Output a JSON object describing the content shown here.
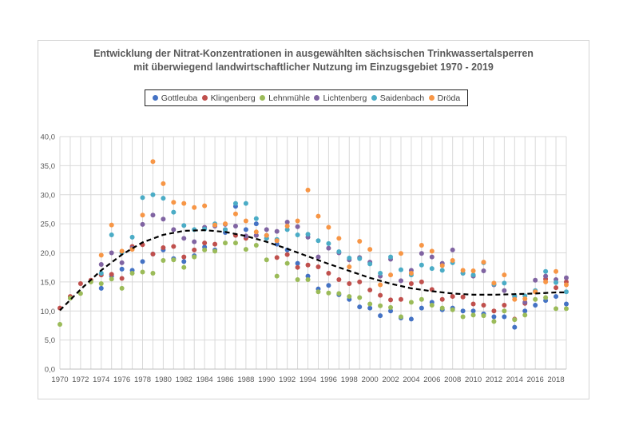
{
  "chart_data": {
    "type": "scatter",
    "title": "Entwicklung der Nitrat-Konzentrationen in ausgewählten sächsischen Trinkwassertalsperren",
    "subtitle": "mit überwiegend landwirtschaftlicher Nutzung im Einzugsgebiet 1970 - 2019",
    "xlabel": "",
    "ylabel": "",
    "xlim": [
      1970,
      2019
    ],
    "ylim": [
      0,
      40
    ],
    "x_ticks": [
      "1970",
      "1972",
      "1974",
      "1976",
      "1978",
      "1980",
      "1982",
      "1984",
      "1986",
      "1988",
      "1990",
      "1992",
      "1994",
      "1996",
      "1998",
      "2000",
      "2002",
      "2004",
      "2006",
      "2008",
      "2010",
      "2012",
      "2014",
      "2016",
      "2018"
    ],
    "y_ticks": [
      "0,0",
      "5,0",
      "10,0",
      "15,0",
      "20,0",
      "25,0",
      "30,0",
      "35,0",
      "40,0"
    ],
    "grid": "vertical and horizontal",
    "legend_position": "top",
    "series": [
      {
        "name": "Gottleuba",
        "color": "#4472c4",
        "points": [
          [
            1974,
            13.9
          ],
          [
            1975,
            16
          ],
          [
            1976,
            17.2
          ],
          [
            1977,
            17
          ],
          [
            1978,
            18.5
          ],
          [
            1979,
            19.8
          ],
          [
            1980,
            20.5
          ],
          [
            1981,
            19
          ],
          [
            1982,
            18.5
          ],
          [
            1983,
            19.5
          ],
          [
            1984,
            21
          ],
          [
            1985,
            20.5
          ],
          [
            1986,
            23.5
          ],
          [
            1987,
            28
          ],
          [
            1988,
            24
          ],
          [
            1989,
            25
          ],
          [
            1990,
            23
          ],
          [
            1991,
            21.5
          ],
          [
            1992,
            20.5
          ],
          [
            1993,
            18.2
          ],
          [
            1994,
            16
          ],
          [
            1995,
            13.8
          ],
          [
            1996,
            14.4
          ],
          [
            1997,
            12.8
          ],
          [
            1998,
            12
          ],
          [
            1999,
            10.7
          ],
          [
            2000,
            10.5
          ],
          [
            2001,
            9.2
          ],
          [
            2002,
            10
          ],
          [
            2003,
            8.8
          ],
          [
            2004,
            8.6
          ],
          [
            2005,
            10.5
          ],
          [
            2006,
            11.5
          ],
          [
            2007,
            10.2
          ],
          [
            2008,
            10.5
          ],
          [
            2009,
            10
          ],
          [
            2010,
            10
          ],
          [
            2011,
            9.5
          ],
          [
            2012,
            9
          ],
          [
            2013,
            9
          ],
          [
            2014,
            7.2
          ],
          [
            2015,
            10
          ],
          [
            2016,
            11
          ],
          [
            2017,
            11.8
          ],
          [
            2018,
            12.5
          ],
          [
            2019,
            11.2
          ]
        ]
      },
      {
        "name": "Klingenberg",
        "color": "#c0504d",
        "points": [
          [
            1970,
            10.5
          ],
          [
            1971,
            12.5
          ],
          [
            1972,
            14.7
          ],
          [
            1973,
            15.3
          ],
          [
            1974,
            16.2
          ],
          [
            1975,
            16.3
          ],
          [
            1976,
            15.6
          ],
          [
            1977,
            21.1
          ],
          [
            1978,
            21.4
          ],
          [
            1979,
            19.8
          ],
          [
            1980,
            20.9
          ],
          [
            1981,
            21.1
          ],
          [
            1982,
            19.3
          ],
          [
            1983,
            20.5
          ],
          [
            1984,
            21.7
          ],
          [
            1985,
            21.5
          ],
          [
            1986,
            24
          ],
          [
            1987,
            23
          ],
          [
            1988,
            22.5
          ],
          [
            1989,
            23
          ],
          [
            1990,
            22.5
          ],
          [
            1991,
            19.2
          ],
          [
            1992,
            19.7
          ],
          [
            1993,
            17.5
          ],
          [
            1994,
            17.9
          ],
          [
            1995,
            17.6
          ],
          [
            1996,
            16.5
          ],
          [
            1997,
            15.4
          ],
          [
            1998,
            14.7
          ],
          [
            1999,
            15
          ],
          [
            2000,
            13.6
          ],
          [
            2001,
            12.7
          ],
          [
            2002,
            11.9
          ],
          [
            2003,
            12
          ],
          [
            2004,
            14.7
          ],
          [
            2005,
            15
          ],
          [
            2006,
            13.7
          ],
          [
            2007,
            12
          ],
          [
            2008,
            12.5
          ],
          [
            2009,
            12.4
          ],
          [
            2010,
            11.2
          ],
          [
            2011,
            11
          ],
          [
            2012,
            10
          ],
          [
            2013,
            11
          ],
          [
            2014,
            8.6
          ],
          [
            2015,
            11.3
          ],
          [
            2016,
            13.4
          ],
          [
            2017,
            15.5
          ],
          [
            2018,
            14
          ],
          [
            2019,
            15
          ]
        ]
      },
      {
        "name": "Lehnmühle",
        "color": "#9bbb59",
        "points": [
          [
            1970,
            7.7
          ],
          [
            1971,
            12.2
          ],
          [
            1972,
            13
          ],
          [
            1973,
            15
          ],
          [
            1974,
            14.7
          ],
          [
            1975,
            15.5
          ],
          [
            1976,
            13.9
          ],
          [
            1977,
            16.5
          ],
          [
            1978,
            16.7
          ],
          [
            1979,
            16.5
          ],
          [
            1980,
            18.7
          ],
          [
            1981,
            18.8
          ],
          [
            1982,
            17.5
          ],
          [
            1983,
            19.3
          ],
          [
            1984,
            20.5
          ],
          [
            1985,
            20.3
          ],
          [
            1986,
            21.7
          ],
          [
            1987,
            21.7
          ],
          [
            1988,
            20.6
          ],
          [
            1989,
            21.3
          ],
          [
            1990,
            18.8
          ],
          [
            1991,
            16
          ],
          [
            1992,
            18.2
          ],
          [
            1993,
            15.4
          ],
          [
            1994,
            15.4
          ],
          [
            1995,
            13.3
          ],
          [
            1996,
            13.1
          ],
          [
            1997,
            13
          ],
          [
            1998,
            12.5
          ],
          [
            1999,
            12.3
          ],
          [
            2000,
            11.2
          ],
          [
            2001,
            10.9
          ],
          [
            2002,
            10.6
          ],
          [
            2003,
            9
          ],
          [
            2004,
            11.5
          ],
          [
            2005,
            12
          ],
          [
            2006,
            11
          ],
          [
            2007,
            10.5
          ],
          [
            2008,
            10.2
          ],
          [
            2009,
            9
          ],
          [
            2010,
            9.3
          ],
          [
            2011,
            9.2
          ],
          [
            2012,
            8.2
          ],
          [
            2013,
            10
          ],
          [
            2014,
            8.5
          ],
          [
            2015,
            9.3
          ],
          [
            2016,
            12
          ],
          [
            2017,
            12.3
          ],
          [
            2018,
            10.4
          ],
          [
            2019,
            10.4
          ]
        ]
      },
      {
        "name": "Lichtenberg",
        "color": "#8064a2",
        "points": [
          [
            1974,
            18
          ],
          [
            1975,
            20
          ],
          [
            1976,
            18.3
          ],
          [
            1977,
            20.8
          ],
          [
            1978,
            24.9
          ],
          [
            1979,
            26.5
          ],
          [
            1980,
            25.8
          ],
          [
            1981,
            24
          ],
          [
            1982,
            22.5
          ],
          [
            1983,
            21.9
          ],
          [
            1984,
            24.4
          ],
          [
            1985,
            24.6
          ],
          [
            1986,
            24.9
          ],
          [
            1987,
            24.6
          ],
          [
            1988,
            22.9
          ],
          [
            1989,
            23
          ],
          [
            1990,
            24
          ],
          [
            1991,
            23.7
          ],
          [
            1992,
            25.3
          ],
          [
            1993,
            24.5
          ],
          [
            1994,
            22.7
          ],
          [
            1995,
            19.3
          ],
          [
            1996,
            20.8
          ],
          [
            1997,
            20
          ],
          [
            1998,
            18.8
          ],
          [
            1999,
            19.2
          ],
          [
            2000,
            18.4
          ],
          [
            2001,
            16
          ],
          [
            2002,
            18.9
          ],
          [
            2003,
            15.2
          ],
          [
            2004,
            17
          ],
          [
            2005,
            19.9
          ],
          [
            2006,
            19.3
          ],
          [
            2007,
            18.2
          ],
          [
            2008,
            20.5
          ],
          [
            2009,
            16.5
          ],
          [
            2010,
            16
          ],
          [
            2011,
            16.9
          ],
          [
            2012,
            14.5
          ],
          [
            2013,
            13.5
          ],
          [
            2014,
            12.5
          ],
          [
            2015,
            11.5
          ],
          [
            2016,
            15.3
          ],
          [
            2017,
            16
          ],
          [
            2018,
            15.4
          ],
          [
            2019,
            15.7
          ]
        ]
      },
      {
        "name": "Saidenbach",
        "color": "#4bacc6",
        "points": [
          [
            1974,
            16.5
          ],
          [
            1975,
            23.1
          ],
          [
            1976,
            20
          ],
          [
            1977,
            22.7
          ],
          [
            1978,
            29.5
          ],
          [
            1979,
            30
          ],
          [
            1980,
            29.4
          ],
          [
            1981,
            27
          ],
          [
            1982,
            24.7
          ],
          [
            1983,
            24
          ],
          [
            1984,
            24.1
          ],
          [
            1985,
            25
          ],
          [
            1986,
            24
          ],
          [
            1987,
            28.5
          ],
          [
            1988,
            28.5
          ],
          [
            1989,
            25.9
          ],
          [
            1990,
            22.5
          ],
          [
            1991,
            22.3
          ],
          [
            1992,
            24
          ],
          [
            1993,
            23.1
          ],
          [
            1994,
            23.2
          ],
          [
            1995,
            22.1
          ],
          [
            1996,
            21.6
          ],
          [
            1997,
            20.2
          ],
          [
            1998,
            19.1
          ],
          [
            1999,
            19
          ],
          [
            2000,
            18.1
          ],
          [
            2001,
            16.5
          ],
          [
            2002,
            19.3
          ],
          [
            2003,
            17.1
          ],
          [
            2004,
            16.2
          ],
          [
            2005,
            17.9
          ],
          [
            2006,
            17.3
          ],
          [
            2007,
            17
          ],
          [
            2008,
            18.3
          ],
          [
            2009,
            16.5
          ],
          [
            2010,
            16.2
          ],
          [
            2011,
            18.3
          ],
          [
            2012,
            14.6
          ],
          [
            2013,
            14.8
          ],
          [
            2014,
            12.6
          ],
          [
            2015,
            12.6
          ],
          [
            2016,
            13.5
          ],
          [
            2017,
            16.8
          ],
          [
            2018,
            14.9
          ],
          [
            2019,
            13.3
          ]
        ]
      },
      {
        "name": "Dröda",
        "color": "#f79646",
        "points": [
          [
            1974,
            19.6
          ],
          [
            1975,
            24.8
          ],
          [
            1976,
            20.3
          ],
          [
            1977,
            20.6
          ],
          [
            1978,
            26.5
          ],
          [
            1979,
            35.7
          ],
          [
            1980,
            31.9
          ],
          [
            1981,
            28.7
          ],
          [
            1982,
            28.5
          ],
          [
            1983,
            27.8
          ],
          [
            1984,
            28.1
          ],
          [
            1985,
            24.8
          ],
          [
            1986,
            25
          ],
          [
            1987,
            26.7
          ],
          [
            1988,
            25.5
          ],
          [
            1989,
            23.6
          ],
          [
            1990,
            23
          ],
          [
            1991,
            22.1
          ],
          [
            1992,
            24.6
          ],
          [
            1993,
            25.5
          ],
          [
            1994,
            30.8
          ],
          [
            1995,
            26.3
          ],
          [
            1996,
            24.4
          ],
          [
            1997,
            22.5
          ],
          [
            1998,
            17.6
          ],
          [
            1999,
            22
          ],
          [
            2000,
            20.6
          ],
          [
            2001,
            14.5
          ],
          [
            2002,
            16.2
          ],
          [
            2003,
            19.9
          ],
          [
            2004,
            16.5
          ],
          [
            2005,
            21.3
          ],
          [
            2006,
            20.3
          ],
          [
            2007,
            17.8
          ],
          [
            2008,
            18.7
          ],
          [
            2009,
            17
          ],
          [
            2010,
            16.9
          ],
          [
            2011,
            18.4
          ],
          [
            2012,
            14.8
          ],
          [
            2013,
            16.2
          ],
          [
            2014,
            12
          ],
          [
            2015,
            12.1
          ],
          [
            2016,
            13.3
          ],
          [
            2017,
            15
          ],
          [
            2018,
            16.8
          ],
          [
            2019,
            14.5
          ]
        ]
      }
    ],
    "trendline": {
      "style": "dashed black polynomial",
      "points": [
        [
          1970,
          10.1
        ],
        [
          1972,
          13.7
        ],
        [
          1974,
          17
        ],
        [
          1976,
          19.7
        ],
        [
          1978,
          21.8
        ],
        [
          1980,
          23.1
        ],
        [
          1982,
          23.8
        ],
        [
          1984,
          23.9
        ],
        [
          1986,
          23.6
        ],
        [
          1988,
          22.9
        ],
        [
          1990,
          21.9
        ],
        [
          1992,
          20.7
        ],
        [
          1994,
          19.4
        ],
        [
          1996,
          18.1
        ],
        [
          1998,
          16.9
        ],
        [
          2000,
          15.7
        ],
        [
          2002,
          14.7
        ],
        [
          2004,
          13.9
        ],
        [
          2006,
          13.4
        ],
        [
          2008,
          13
        ],
        [
          2010,
          12.8
        ],
        [
          2012,
          12.8
        ],
        [
          2014,
          12.9
        ],
        [
          2016,
          13
        ],
        [
          2018,
          13.2
        ],
        [
          2019,
          13.2
        ]
      ]
    }
  }
}
